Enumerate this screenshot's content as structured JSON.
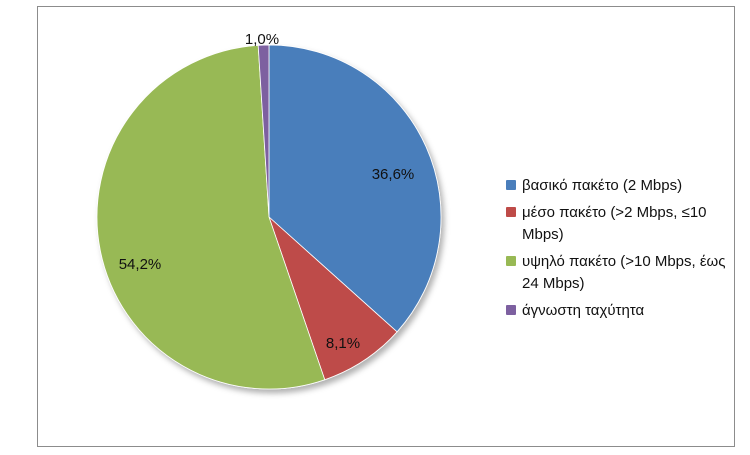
{
  "chart_data": {
    "type": "pie",
    "title": "",
    "slices": [
      {
        "label": "βασικό πακέτο (2 Mbps)",
        "value": 36.6,
        "value_label": "36,6%",
        "color": "#4a7ebb"
      },
      {
        "label": "μέσο πακέτο (>2 Mbps, ≤10 Mbps)",
        "value": 8.1,
        "value_label": "8,1%",
        "color": "#be4b48"
      },
      {
        "label": "υψηλό πακέτο (>10 Mbps, έως 24 Mbps)",
        "value": 54.2,
        "value_label": "54,2%",
        "color": "#98b954"
      },
      {
        "label": "άγνωστη ταχύτητα",
        "value": 1.0,
        "value_label": "1,0%",
        "color": "#7d60a0"
      }
    ],
    "start_angle": "top",
    "direction": "clockwise",
    "legend_position": "right"
  }
}
